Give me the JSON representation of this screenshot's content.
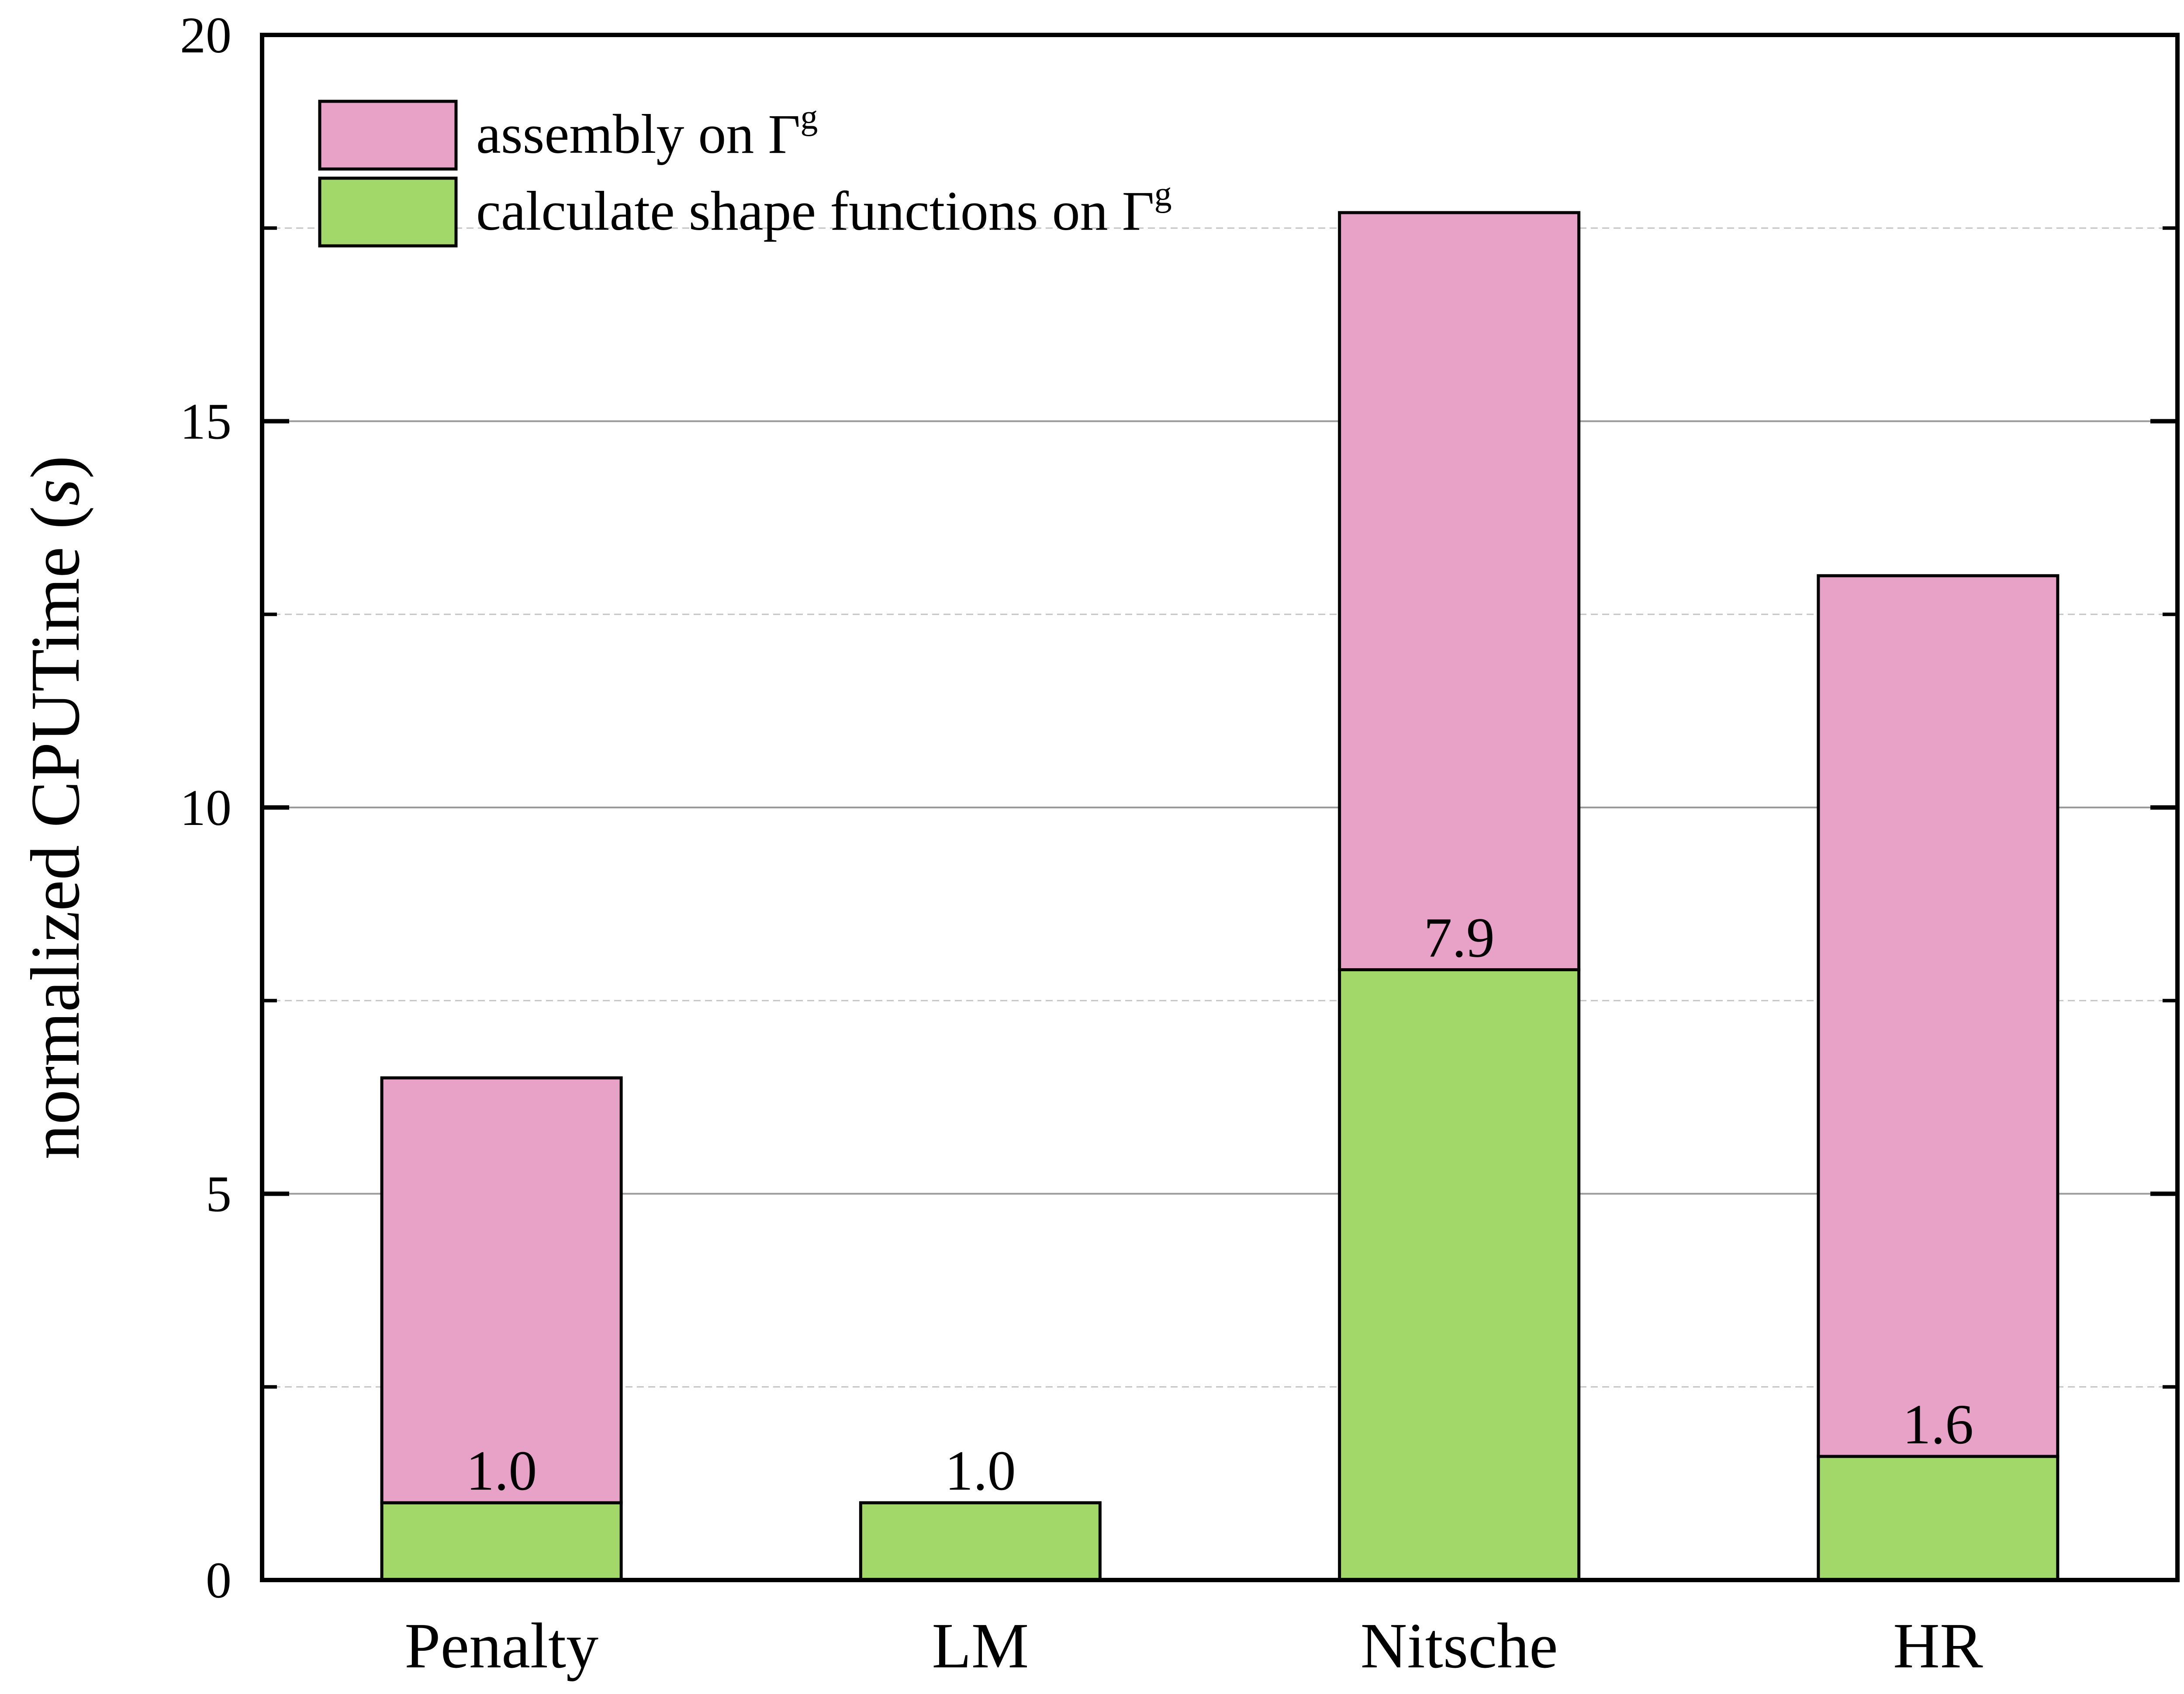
{
  "chart_data": {
    "type": "bar",
    "stacked": true,
    "categories": [
      "Penalty",
      "LM",
      "Nitsche",
      "HR"
    ],
    "series": [
      {
        "name": "calculate shape functions on Γ",
        "name_superscript": "g",
        "color": "#a2d76a",
        "values": [
          1.0,
          1.0,
          7.9,
          1.6
        ]
      },
      {
        "name": "assembly on Γ",
        "name_superscript": "g",
        "color": "#e8a2c7",
        "values": [
          5.5,
          0.0,
          9.8,
          11.4
        ]
      }
    ],
    "data_labels": [
      "1.0",
      "1.0",
      "7.9",
      "1.6"
    ],
    "xlabel": "",
    "ylabel": "normalized CPUTime (",
    "ylabel_italic": "s",
    "ylabel_close": ")",
    "ylim": [
      0,
      20
    ],
    "yticks": [
      "0",
      "5",
      "10",
      "15",
      "20"
    ],
    "grid": {
      "major": true,
      "minor": true,
      "minor_style": "dashed"
    },
    "legend_position": "top-left"
  }
}
